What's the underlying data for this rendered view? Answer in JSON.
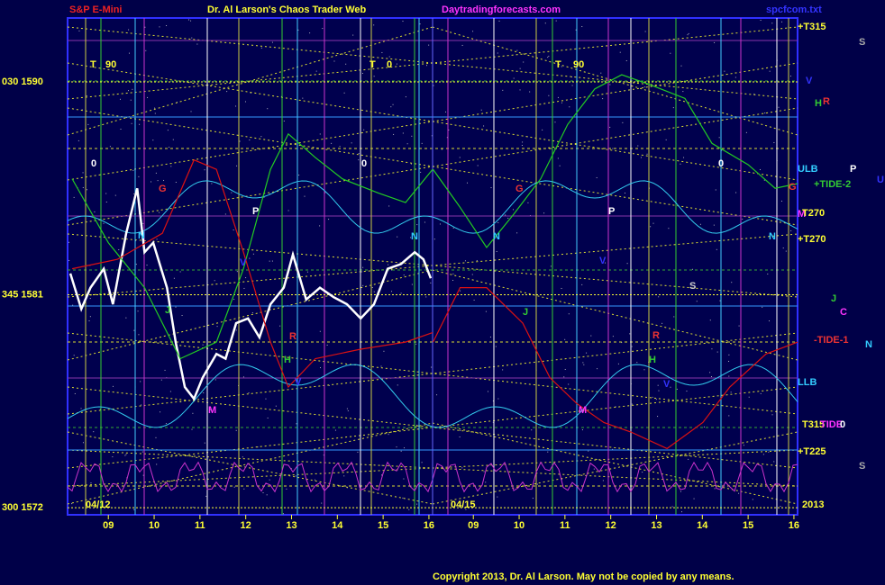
{
  "chart_data": [
    {
      "type": "line",
      "title": "S&P E-Mini",
      "subtitle": "Dr. Al Larson's Chaos Trader Web",
      "site": "Daytradingforecasts.com",
      "file": "spcfcom.txt",
      "date": "04/12",
      "xlim": [
        8.11,
        16.08
      ],
      "xticks": [
        {
          "value": 9,
          "label": "09"
        },
        10,
        11,
        12,
        13,
        14,
        15,
        16
      ],
      "ylim": [
        1571.7,
        1592.7
      ],
      "yticks": [
        {
          "value": 1572,
          "label": "300  1572"
        },
        {
          "value": 1581,
          "label": "345  1581"
        },
        {
          "value": 1590,
          "label": "030  1590"
        }
      ],
      "grid": true,
      "series": [
        {
          "color": "#ffffff",
          "x": [
            8.17,
            8.41,
            8.61,
            8.9,
            9.1,
            9.39,
            9.63,
            9.79,
            9.98,
            10.28,
            10.47,
            10.67,
            10.87,
            11.06,
            11.36,
            11.56,
            11.79,
            12.05,
            12.3,
            12.54,
            12.83,
            13.03,
            13.32,
            13.62,
            13.92,
            14.21,
            14.51,
            14.8,
            15.1,
            15.39,
            15.69,
            15.88,
            16.04
          ],
          "values": [
            1581.9,
            1580.4,
            1581.3,
            1582.1,
            1580.6,
            1583.6,
            1585.5,
            1582.8,
            1583.2,
            1581.3,
            1579.0,
            1577.1,
            1576.6,
            1577.5,
            1578.5,
            1578.3,
            1579.8,
            1580.0,
            1579.2,
            1580.6,
            1581.3,
            1582.7,
            1580.8,
            1581.3,
            1580.9,
            1580.6,
            1580.0,
            1580.6,
            1582.1,
            1582.3,
            1582.8,
            1582.5,
            1581.7
          ]
        },
        {
          "color": "#22cc22",
          "x": [
            8.21,
            9,
            9.79,
            10.57,
            11.36,
            11.95,
            12.54,
            12.93,
            13.52,
            14.11,
            14.9,
            15.49,
            16.08
          ],
          "values": [
            1585.9,
            1583.2,
            1581.3,
            1578.3,
            1579.0,
            1582.1,
            1586.3,
            1587.8,
            1586.8,
            1585.9,
            1585.3,
            1584.9,
            1586.3
          ]
        },
        {
          "color": "#dd1111",
          "x": [
            8.21,
            9.2,
            10.18,
            10.87,
            11.36,
            11.95,
            12.54,
            12.93,
            13.52,
            14.51,
            15.49,
            16.08
          ],
          "values": [
            1582.1,
            1582.5,
            1583.6,
            1586.7,
            1586.3,
            1582.8,
            1579.0,
            1577.1,
            1578.3,
            1578.7,
            1579.0,
            1579.4
          ]
        }
      ]
    },
    {
      "type": "line",
      "date": "04/15",
      "year": "2013",
      "xlim": [
        8.11,
        16.08
      ],
      "xticks": [
        {
          "value": 9,
          "label": "09"
        },
        10,
        11,
        12,
        13,
        14,
        15,
        16
      ],
      "ylim": [
        1571.7,
        1592.7
      ],
      "series": [
        {
          "color": "#22cc22",
          "x": [
            8.12,
            8.71,
            9.29,
            9.88,
            10.47,
            11.06,
            11.65,
            12.24,
            12.83,
            13.62,
            14.21,
            15.0,
            15.59,
            16.08
          ],
          "values": [
            1586.3,
            1584.7,
            1583.0,
            1584.4,
            1585.9,
            1588.2,
            1589.7,
            1590.3,
            1589.9,
            1589.3,
            1587.4,
            1586.5,
            1585.5,
            1585.7
          ]
        },
        {
          "color": "#dd1111",
          "x": [
            8.12,
            8.71,
            9.29,
            10.08,
            10.67,
            11.26,
            11.85,
            12.44,
            13.23,
            14.01,
            14.6,
            15.39,
            16.08
          ],
          "values": [
            1579.0,
            1581.3,
            1581.3,
            1579.8,
            1577.5,
            1576.4,
            1575.6,
            1575.2,
            1574.5,
            1575.6,
            1577.1,
            1578.5,
            1579.0
          ]
        }
      ]
    }
  ],
  "annotations": [
    "T",
    "90",
    "T",
    "0",
    "T",
    "90",
    "0",
    "G",
    "P",
    "N",
    "V",
    "J",
    "R",
    "H",
    "V",
    "M",
    "0",
    "N",
    "G",
    "P",
    "N",
    "V",
    "S",
    "J",
    "R",
    "H",
    "V",
    "M",
    "0",
    "N",
    "G",
    "M",
    "+T315",
    "V",
    "H",
    "R",
    "ULB",
    "P",
    "U",
    "+TIDE-2",
    "T270",
    "+T270",
    "J",
    "C",
    "-TIDE-1",
    "N",
    "LLB",
    "T315",
    "TIDE",
    "0",
    "+T225",
    "S",
    "S"
  ],
  "footer": "Copyright 2013, Dr. Al Larson. May not be copied by any means."
}
